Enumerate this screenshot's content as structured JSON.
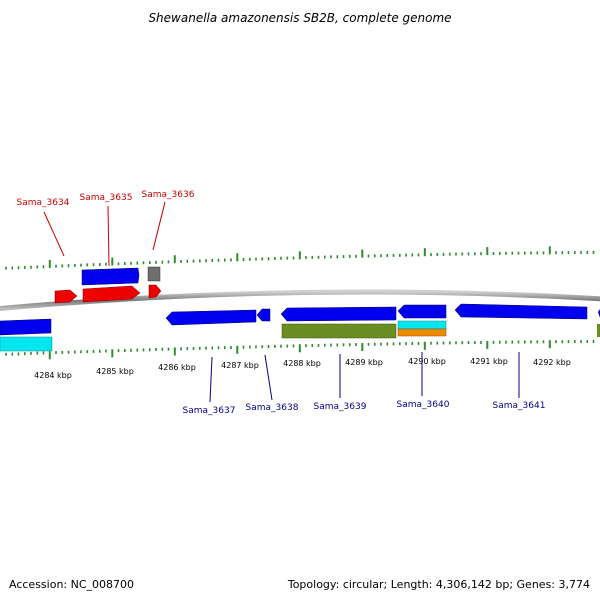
{
  "title": "Shewanella amazonensis SB2B, complete genome",
  "footer": {
    "accession": "Accession: NC_008700",
    "summary": "Topology: circular; Length: 4,306,142 bp; Genes: 3,774"
  },
  "colors": {
    "backbone": "#8c8c8c",
    "tick": "#2e8b2e",
    "label_top": "#cc0000",
    "label_bottom": "#00008b",
    "blue": "#0000ee",
    "red": "#ee0000",
    "gray": "#6e6e6e",
    "cyan": "#00e5ee",
    "olive": "#6b8e23",
    "orange": "#ee8a00"
  },
  "scale": {
    "ticks": [
      {
        "label": "4284 kbp"
      },
      {
        "label": "4285 kbp"
      },
      {
        "label": "4286 kbp"
      },
      {
        "label": "4287 kbp"
      },
      {
        "label": "4288 kbp"
      },
      {
        "label": "4289 kbp"
      },
      {
        "label": "4290 kbp"
      },
      {
        "label": "4291 kbp"
      },
      {
        "label": "4292 kbp"
      }
    ]
  },
  "gene_labels_top": [
    "Sama_3634",
    "Sama_3635",
    "Sama_3636"
  ],
  "gene_labels_bottom": [
    "Sama_3637",
    "Sama_3638",
    "Sama_3639",
    "Sama_3640",
    "Sama_3641"
  ]
}
